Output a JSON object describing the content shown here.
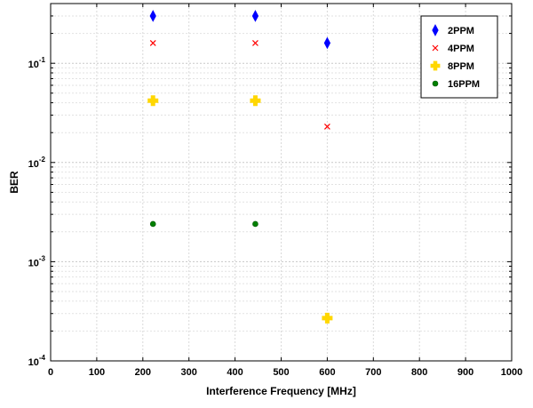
{
  "chart_data": {
    "type": "scatter",
    "xlabel": "Interference Frequency [MHz]",
    "ylabel": "BER",
    "xlim": [
      0,
      1000
    ],
    "ylim": [
      0.0001,
      0.4
    ],
    "yscale": "log",
    "grid": true,
    "legend_position": "top-right",
    "x_ticks": [
      "0",
      "100",
      "200",
      "300",
      "400",
      "500",
      "600",
      "700",
      "800",
      "900",
      "1000"
    ],
    "y_ticks": [
      {
        "base": "10",
        "exp": "-4",
        "value": 0.0001
      },
      {
        "base": "10",
        "exp": "-3",
        "value": 0.001
      },
      {
        "base": "10",
        "exp": "-2",
        "value": 0.01
      },
      {
        "base": "10",
        "exp": "-1",
        "value": 0.1
      }
    ],
    "series": [
      {
        "name": "2PPM",
        "marker": "diamond",
        "color": "#0000ff",
        "x": [
          222,
          444,
          600
        ],
        "y": [
          0.3,
          0.3,
          0.16
        ]
      },
      {
        "name": "4PPM",
        "marker": "x",
        "color": "#ff0000",
        "x": [
          222,
          444,
          600
        ],
        "y": [
          0.16,
          0.16,
          0.023
        ]
      },
      {
        "name": "8PPM",
        "marker": "plus",
        "color": "#ffd700",
        "x": [
          222,
          444,
          600
        ],
        "y": [
          0.042,
          0.042,
          0.00027
        ]
      },
      {
        "name": "16PPM",
        "marker": "circle",
        "color": "#008000",
        "x": [
          222,
          444
        ],
        "y": [
          0.0024,
          0.0024
        ]
      }
    ]
  }
}
